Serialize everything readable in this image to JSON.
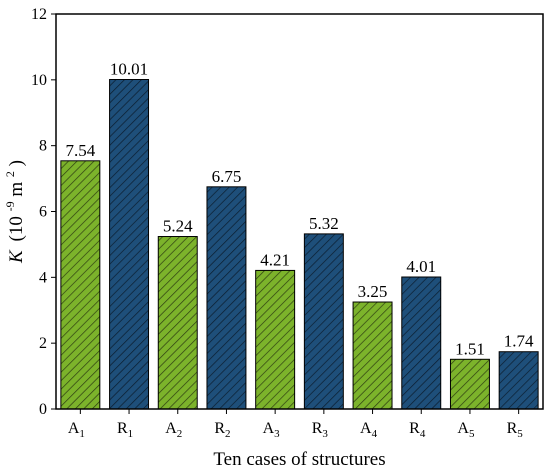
{
  "chart_data": {
    "type": "bar",
    "title": "",
    "xlabel": "Ten cases of structures",
    "ylabel_symbol": "K",
    "ylabel_unit_prefix": "(10",
    "ylabel_unit_exponent": "-9",
    "ylabel_unit_mid": " m",
    "ylabel_unit_power": "2",
    "ylabel_unit_suffix": ")",
    "ylim": [
      0,
      12
    ],
    "yticks": [
      0,
      2,
      4,
      6,
      8,
      10,
      12
    ],
    "categories": [
      {
        "base": "A",
        "sub": "1"
      },
      {
        "base": "R",
        "sub": "1"
      },
      {
        "base": "A",
        "sub": "2"
      },
      {
        "base": "R",
        "sub": "2"
      },
      {
        "base": "A",
        "sub": "3"
      },
      {
        "base": "R",
        "sub": "3"
      },
      {
        "base": "A",
        "sub": "4"
      },
      {
        "base": "R",
        "sub": "4"
      },
      {
        "base": "A",
        "sub": "5"
      },
      {
        "base": "R",
        "sub": "5"
      }
    ],
    "values": [
      7.54,
      10.01,
      5.24,
      6.75,
      4.21,
      5.32,
      3.25,
      4.01,
      1.51,
      1.74
    ],
    "value_labels": [
      "7.54",
      "10.01",
      "5.24",
      "6.75",
      "4.21",
      "5.32",
      "3.25",
      "4.01",
      "1.51",
      "1.74"
    ],
    "bar_colors": {
      "A": "#7cb32b",
      "R": "#1e4f7a"
    },
    "grid": false,
    "hatch": "diagonal"
  }
}
